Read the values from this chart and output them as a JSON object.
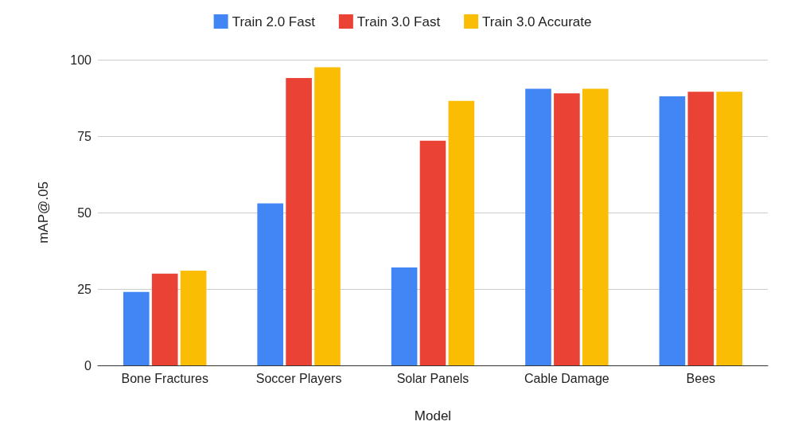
{
  "chart_data": {
    "type": "bar",
    "xlabel": "Model",
    "ylabel": "mAP@.05",
    "categories": [
      "Bone Fractures",
      "Soccer Players",
      "Solar Panels",
      "Cable Damage",
      "Bees"
    ],
    "series": [
      {
        "name": "Train 2.0 Fast",
        "color": "#4285f4",
        "values": [
          24,
          53,
          32,
          90.5,
          88
        ]
      },
      {
        "name": "Train 3.0 Fast",
        "color": "#ea4335",
        "values": [
          30,
          94,
          73.5,
          89,
          89.5
        ]
      },
      {
        "name": "Train 3.0 Accurate",
        "color": "#fbbc04",
        "values": [
          31,
          97.5,
          86.5,
          90.5,
          89.5
        ]
      }
    ],
    "ylim": [
      0,
      100
    ],
    "yticks": [
      0,
      25,
      50,
      75,
      100
    ],
    "grid": "y",
    "legend": "top"
  }
}
